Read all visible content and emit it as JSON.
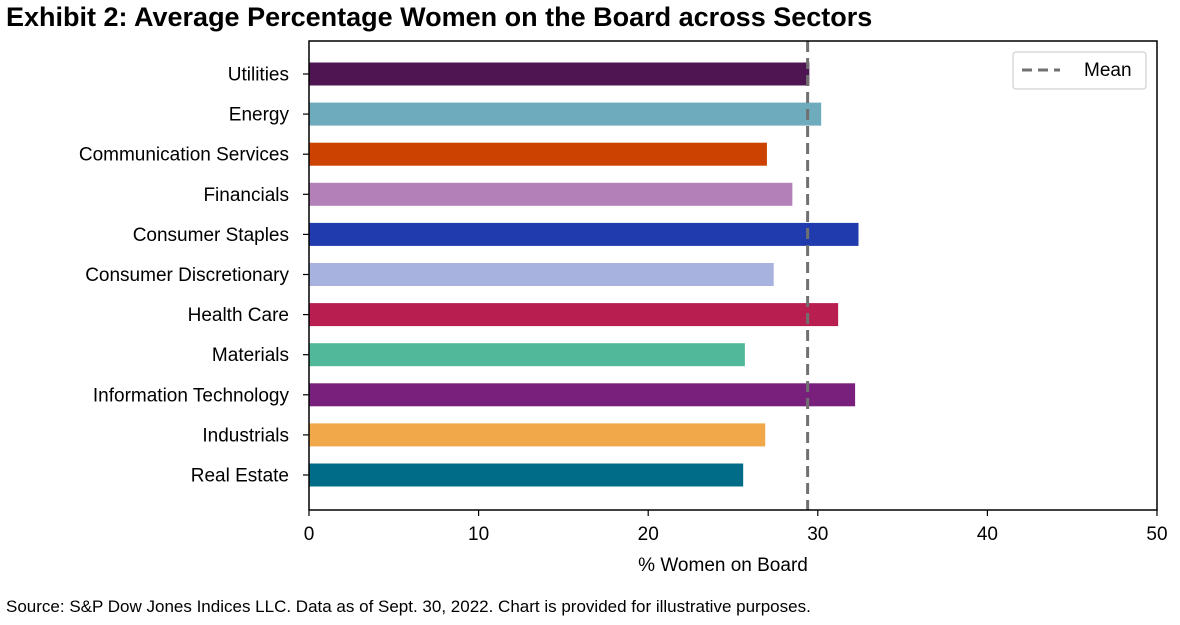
{
  "title": "Exhibit 2: Average Percentage Women on the Board across Sectors",
  "source": "S&P Dow Jones Indices LLC. Data as of Sept. 30, 2022. Chart is provided for illustrative purposes.",
  "source_label": "Source:",
  "chart_data": {
    "type": "bar",
    "orientation": "horizontal",
    "categories": [
      "Utilities",
      "Energy",
      "Communication Services",
      "Financials",
      "Consumer Staples",
      "Consumer Discretionary",
      "Health Care",
      "Materials",
      "Information Technology",
      "Industrials",
      "Real Estate"
    ],
    "values": [
      29.5,
      30.2,
      27.0,
      28.5,
      32.4,
      27.4,
      31.2,
      25.7,
      32.2,
      26.9,
      25.6
    ],
    "colors": [
      "#4f1552",
      "#6eabbd",
      "#cc4200",
      "#b380b8",
      "#1f3bad",
      "#a8b2de",
      "#b81e4f",
      "#52b89a",
      "#78207c",
      "#f0a84a",
      "#006c87"
    ],
    "mean": 29.4,
    "legend": {
      "entries": [
        {
          "label": "Mean",
          "style": "dashed",
          "color": "#707070"
        }
      ],
      "location": "top-right"
    },
    "xlabel": "% Women on Board",
    "ylabel": "",
    "xlim": [
      0,
      50
    ],
    "xticks": [
      0,
      10,
      20,
      30,
      40,
      50
    ],
    "grid": false
  }
}
